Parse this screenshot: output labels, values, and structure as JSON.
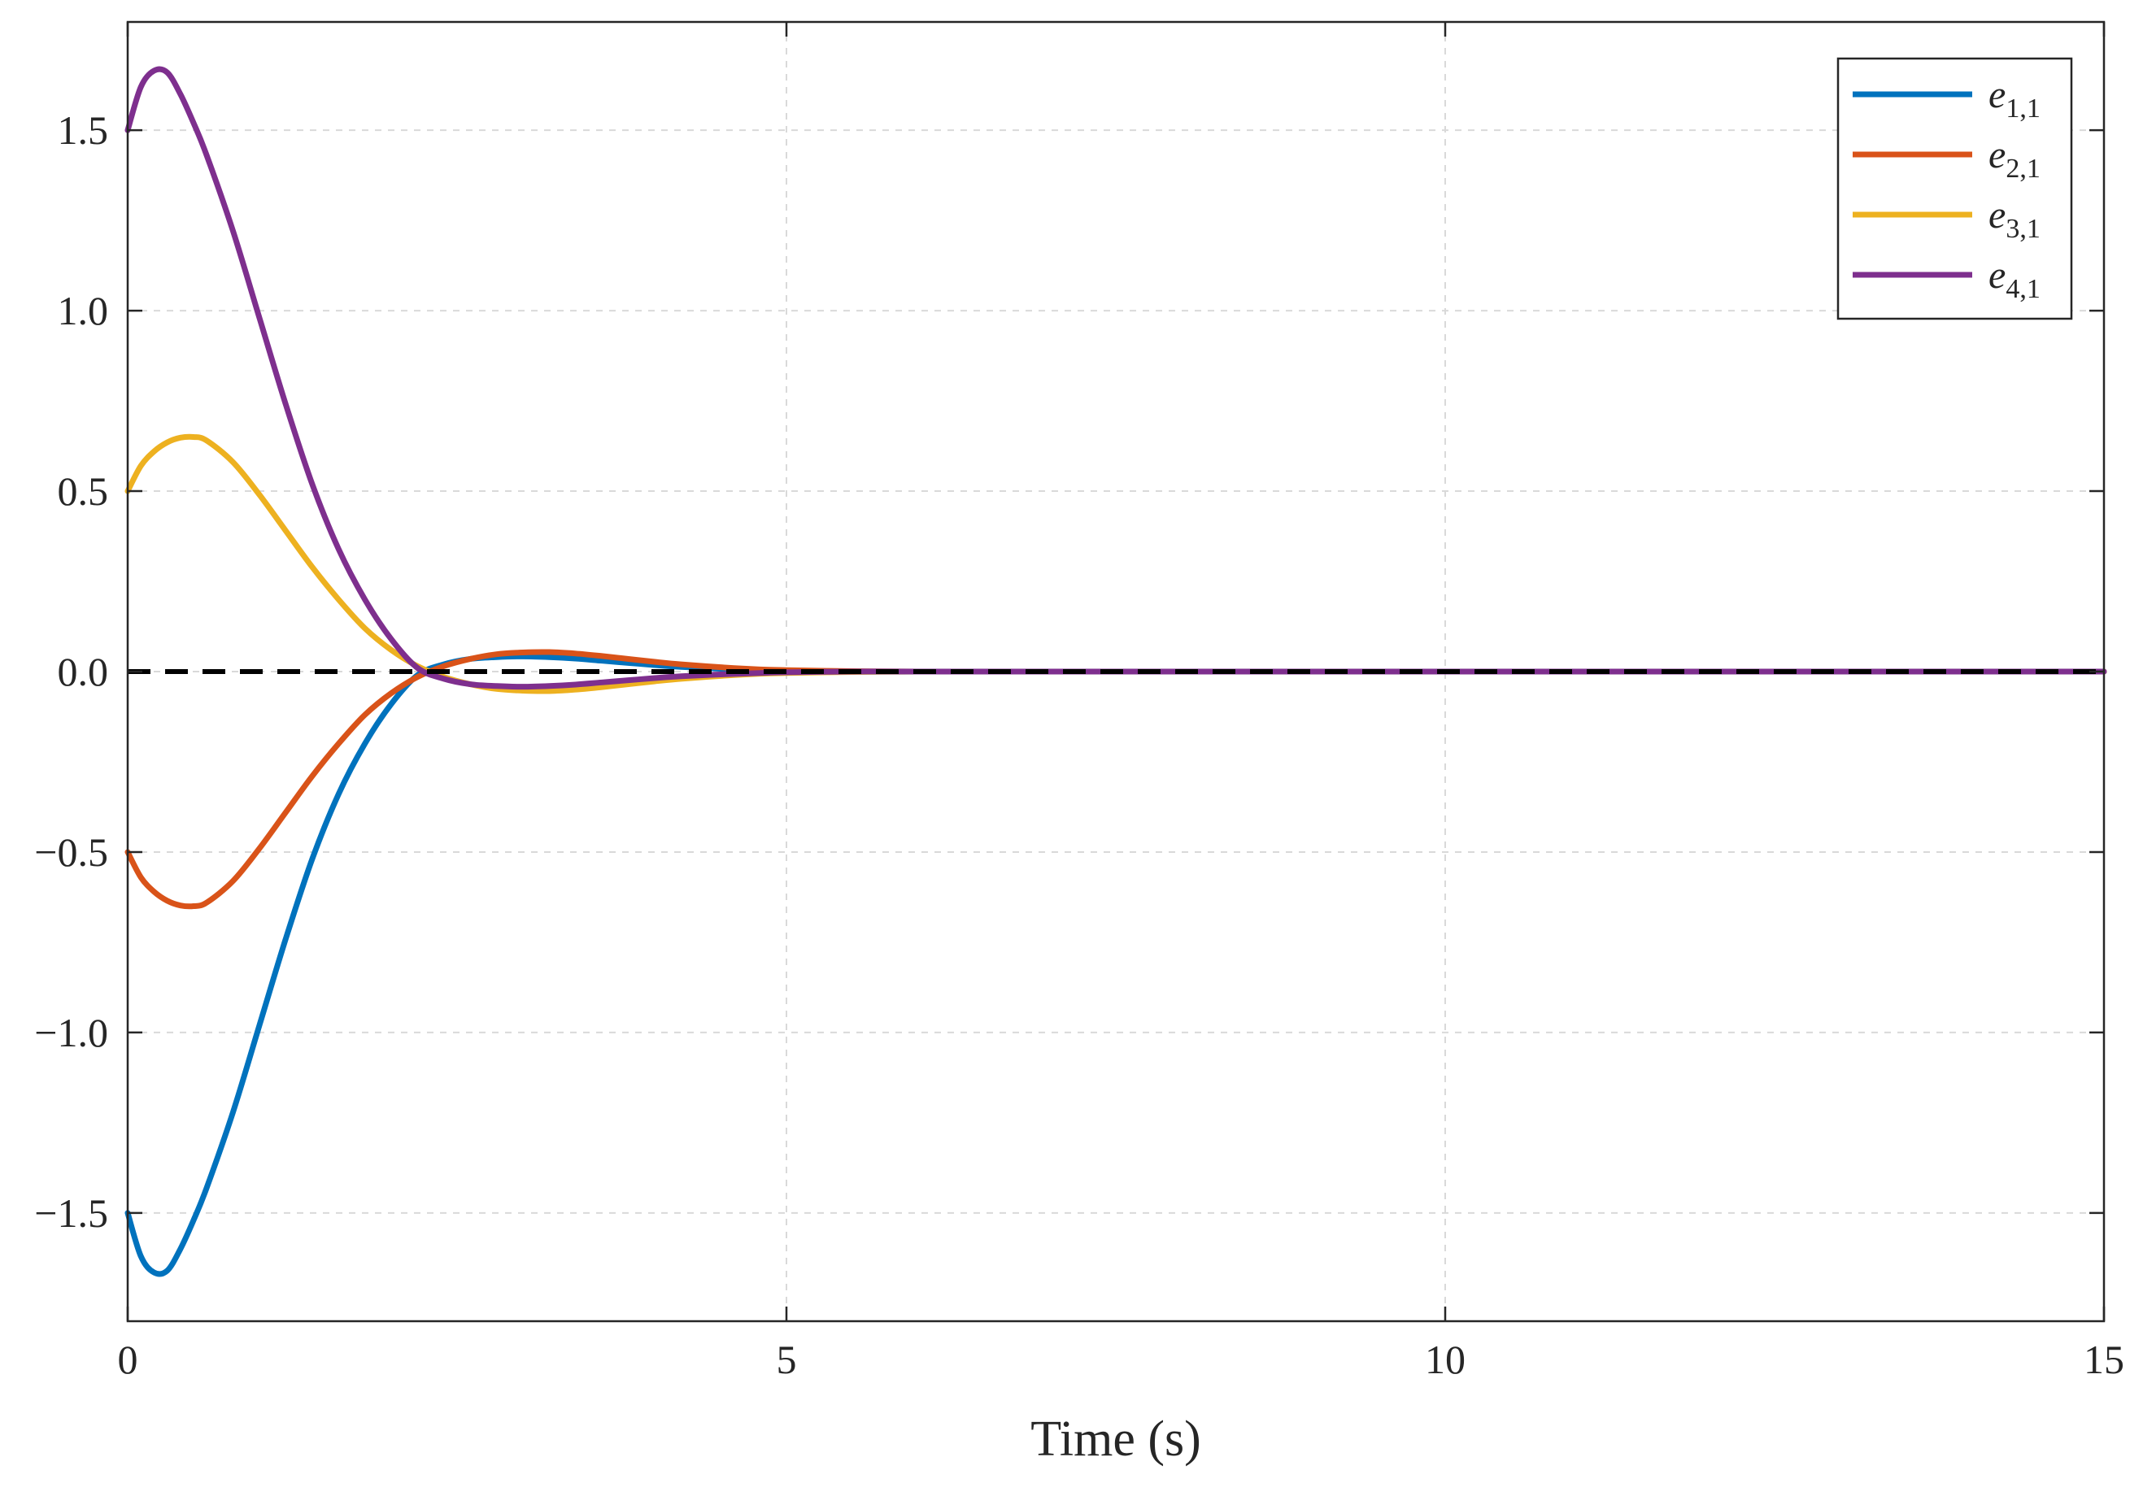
{
  "chart_data": {
    "type": "line",
    "title": "",
    "xlabel": "Time (s)",
    "ylabel": "",
    "xlim": [
      0,
      15
    ],
    "ylim": [
      -1.8,
      1.8
    ],
    "grid": true,
    "legend_position": "top-right",
    "x_ticks": [
      0,
      5,
      10,
      15
    ],
    "x_tick_labels": [
      "0",
      "5",
      "10",
      "15"
    ],
    "y_ticks": [
      -1.5,
      -1.0,
      -0.5,
      0.0,
      0.5,
      1.0,
      1.5
    ],
    "y_tick_labels": [
      "−1.5",
      "−1.0",
      "−0.5",
      "0.0",
      "0.5",
      "1.0",
      "1.5"
    ],
    "reference_line": {
      "y": 0,
      "color": "#000000",
      "style": "dashed"
    },
    "x": [
      0,
      0.1,
      0.2,
      0.3,
      0.4,
      0.5,
      0.6,
      0.8,
      1.0,
      1.2,
      1.4,
      1.6,
      1.8,
      2.0,
      2.2,
      2.4,
      2.6,
      2.8,
      3.0,
      3.2,
      3.4,
      3.6,
      3.8,
      4.0,
      4.2,
      4.5,
      4.8,
      5.0,
      5.5,
      6.0,
      7.0,
      8.0,
      10.0,
      12.0,
      15.0
    ],
    "series": [
      {
        "name": "e",
        "sub": "1,1",
        "color": "#0072BD",
        "values": [
          -1.5,
          -1.62,
          -1.665,
          -1.66,
          -1.6,
          -1.52,
          -1.43,
          -1.22,
          -0.98,
          -0.74,
          -0.52,
          -0.34,
          -0.2,
          -0.09,
          -0.01,
          0.02,
          0.035,
          0.04,
          0.042,
          0.04,
          0.036,
          0.03,
          0.024,
          0.018,
          0.013,
          0.008,
          0.004,
          0.002,
          0.0,
          0.0,
          0.0,
          0.0,
          0.0,
          0.0,
          0.0
        ]
      },
      {
        "name": "e",
        "sub": "2,1",
        "color": "#D95319",
        "values": [
          -0.5,
          -0.57,
          -0.61,
          -0.635,
          -0.648,
          -0.65,
          -0.64,
          -0.58,
          -0.49,
          -0.39,
          -0.29,
          -0.2,
          -0.12,
          -0.06,
          -0.015,
          0.015,
          0.035,
          0.048,
          0.053,
          0.054,
          0.05,
          0.043,
          0.035,
          0.027,
          0.02,
          0.012,
          0.006,
          0.004,
          0.001,
          0.0,
          0.0,
          0.0,
          0.0,
          0.0,
          0.0
        ]
      },
      {
        "name": "e",
        "sub": "3,1",
        "color": "#EDB120",
        "values": [
          0.5,
          0.57,
          0.61,
          0.635,
          0.648,
          0.65,
          0.64,
          0.58,
          0.49,
          0.39,
          0.29,
          0.2,
          0.12,
          0.06,
          0.015,
          -0.015,
          -0.035,
          -0.048,
          -0.053,
          -0.054,
          -0.05,
          -0.043,
          -0.035,
          -0.027,
          -0.02,
          -0.012,
          -0.006,
          -0.004,
          -0.001,
          0.0,
          0.0,
          0.0,
          0.0,
          0.0,
          0.0
        ]
      },
      {
        "name": "e",
        "sub": "4,1",
        "color": "#7E2F8E",
        "values": [
          1.5,
          1.62,
          1.665,
          1.66,
          1.6,
          1.52,
          1.43,
          1.22,
          0.98,
          0.74,
          0.52,
          0.34,
          0.2,
          0.09,
          0.01,
          -0.02,
          -0.035,
          -0.04,
          -0.042,
          -0.04,
          -0.036,
          -0.03,
          -0.024,
          -0.018,
          -0.013,
          -0.008,
          -0.004,
          -0.002,
          0.0,
          0.0,
          0.0,
          0.0,
          0.0,
          0.0,
          0.0
        ]
      }
    ]
  }
}
